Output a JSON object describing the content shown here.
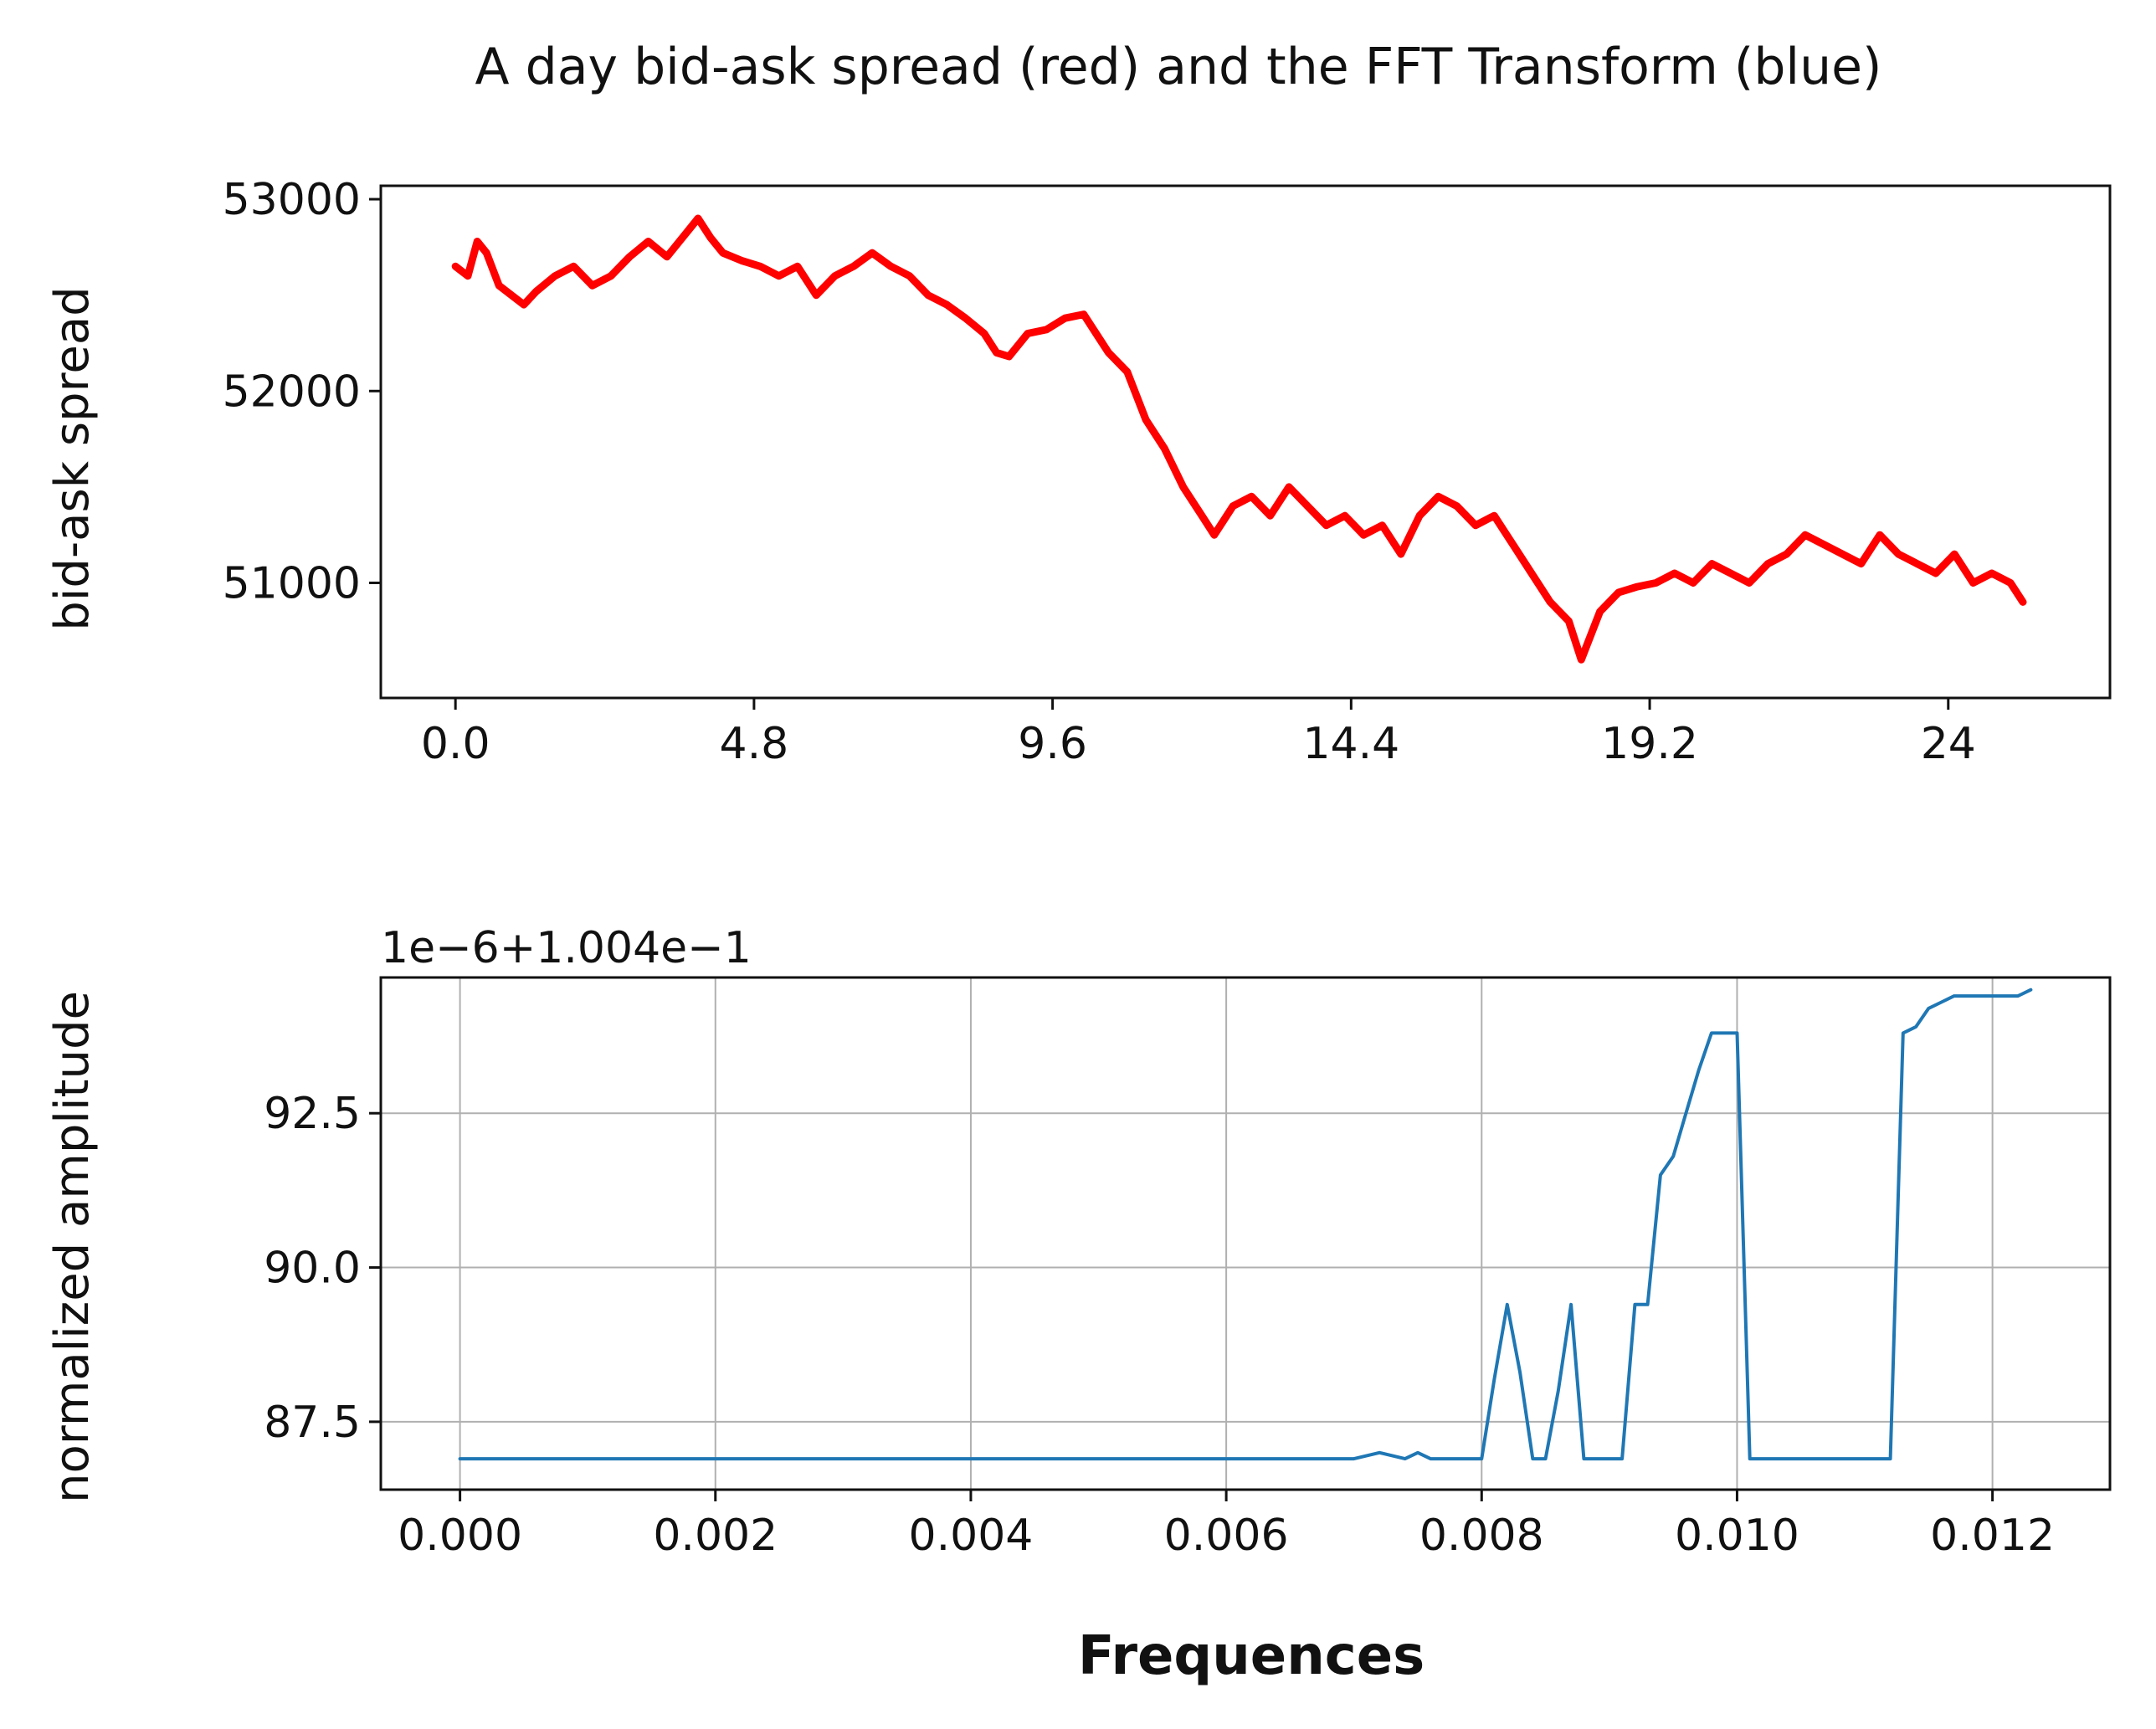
{
  "chart_data": [
    {
      "type": "line",
      "title": "A day bid-ask spread (red) and the FFT Transform (blue)",
      "ylabel": "bid-ask spread",
      "xlabel": "",
      "xlim": [
        -1.2,
        26.6
      ],
      "ylim": [
        50400,
        53070
      ],
      "xticks": [
        0,
        4.8,
        9.6,
        14.4,
        19.2,
        24
      ],
      "xtick_labels": [
        "0.0",
        "4.8",
        "9.6",
        "14.4",
        "19.2",
        "24"
      ],
      "yticks": [
        51000,
        52000,
        53000
      ],
      "ytick_labels": [
        "51000",
        "52000",
        "53000"
      ],
      "grid": false,
      "series": [
        {
          "color": "#ff0000",
          "x": [
            0,
            0.2,
            0.35,
            0.5,
            0.7,
            0.9,
            1.1,
            1.3,
            1.6,
            1.9,
            2.2,
            2.5,
            2.8,
            3.1,
            3.4,
            3.7,
            3.9,
            4.1,
            4.3,
            4.6,
            4.9,
            5.2,
            5.5,
            5.8,
            6.1,
            6.4,
            6.7,
            7.0,
            7.3,
            7.6,
            7.9,
            8.2,
            8.5,
            8.7,
            8.9,
            9.2,
            9.5,
            9.8,
            10.1,
            10.3,
            10.5,
            10.8,
            11.1,
            11.4,
            11.7,
            12.0,
            12.2,
            12.5,
            12.8,
            13.1,
            13.4,
            13.7,
            14.0,
            14.3,
            14.6,
            14.9,
            15.2,
            15.5,
            15.8,
            16.1,
            16.4,
            16.7,
            17.0,
            17.3,
            17.6,
            17.9,
            18.1,
            18.4,
            18.7,
            19.0,
            19.3,
            19.6,
            19.9,
            20.2,
            20.5,
            20.8,
            21.1,
            21.4,
            21.7,
            22.0,
            22.3,
            22.6,
            22.9,
            23.2,
            23.5,
            23.8,
            24.1,
            24.4,
            24.7,
            25.0,
            25.2
          ],
          "values": [
            52650,
            52600,
            52780,
            52720,
            52550,
            52500,
            52450,
            52520,
            52600,
            52650,
            52550,
            52600,
            52700,
            52780,
            52700,
            52820,
            52900,
            52800,
            52720,
            52680,
            52650,
            52600,
            52650,
            52500,
            52600,
            52650,
            52720,
            52650,
            52600,
            52500,
            52450,
            52380,
            52300,
            52200,
            52180,
            52300,
            52320,
            52380,
            52400,
            52300,
            52200,
            52100,
            51850,
            51700,
            51500,
            51350,
            51250,
            51400,
            51450,
            51350,
            51500,
            51400,
            51300,
            51350,
            51250,
            51300,
            51150,
            51350,
            51450,
            51400,
            51300,
            51350,
            51200,
            51050,
            50900,
            50800,
            50600,
            50850,
            50950,
            50980,
            51000,
            51050,
            51000,
            51100,
            51050,
            51000,
            51100,
            51150,
            51250,
            51200,
            51150,
            51100,
            51250,
            51150,
            51100,
            51050,
            51150,
            51000,
            51050,
            51000,
            50900
          ]
        }
      ]
    },
    {
      "type": "line",
      "title": "",
      "ylabel": "normalized amplitude",
      "xlabel": "Frequences",
      "offset_text": "1e−6+1.004e−1",
      "xlim": [
        -0.00062,
        0.01292
      ],
      "ylim": [
        86.4,
        94.7
      ],
      "xticks": [
        0,
        0.002,
        0.004,
        0.006,
        0.008,
        0.01,
        0.012
      ],
      "xtick_labels": [
        "0.000",
        "0.002",
        "0.004",
        "0.006",
        "0.008",
        "0.010",
        "0.012"
      ],
      "yticks": [
        87.5,
        90.0,
        92.5
      ],
      "ytick_labels": [
        "87.5",
        "90.0",
        "92.5"
      ],
      "grid": true,
      "series": [
        {
          "color": "#1f77b4",
          "x": [
            0,
            0.001,
            0.002,
            0.003,
            0.004,
            0.005,
            0.006,
            0.007,
            0.0072,
            0.0074,
            0.0075,
            0.0076,
            0.0078,
            0.008,
            0.0081,
            0.0082,
            0.0083,
            0.0084,
            0.0085,
            0.0086,
            0.0087,
            0.0088,
            0.0089,
            0.009,
            0.0091,
            0.0092,
            0.0093,
            0.0094,
            0.0095,
            0.0096,
            0.0097,
            0.0098,
            0.0099,
            0.01,
            0.0101,
            0.0102,
            0.0103,
            0.0106,
            0.0109,
            0.0112,
            0.0113,
            0.0114,
            0.0115,
            0.0116,
            0.0117,
            0.0118,
            0.0119,
            0.012,
            0.0121,
            0.0122,
            0.0123
          ],
          "values": [
            86.9,
            86.9,
            86.9,
            86.9,
            86.9,
            86.9,
            86.9,
            86.9,
            87.0,
            86.9,
            87.0,
            86.9,
            86.9,
            86.9,
            88.2,
            89.4,
            88.3,
            86.9,
            86.9,
            88.0,
            89.4,
            86.9,
            86.9,
            86.9,
            86.9,
            89.4,
            89.4,
            91.5,
            91.8,
            92.5,
            93.2,
            93.8,
            93.8,
            93.8,
            86.9,
            86.9,
            86.9,
            86.9,
            86.9,
            86.9,
            93.8,
            93.9,
            94.2,
            94.3,
            94.4,
            94.4,
            94.4,
            94.4,
            94.4,
            94.4,
            94.5
          ]
        }
      ]
    }
  ]
}
